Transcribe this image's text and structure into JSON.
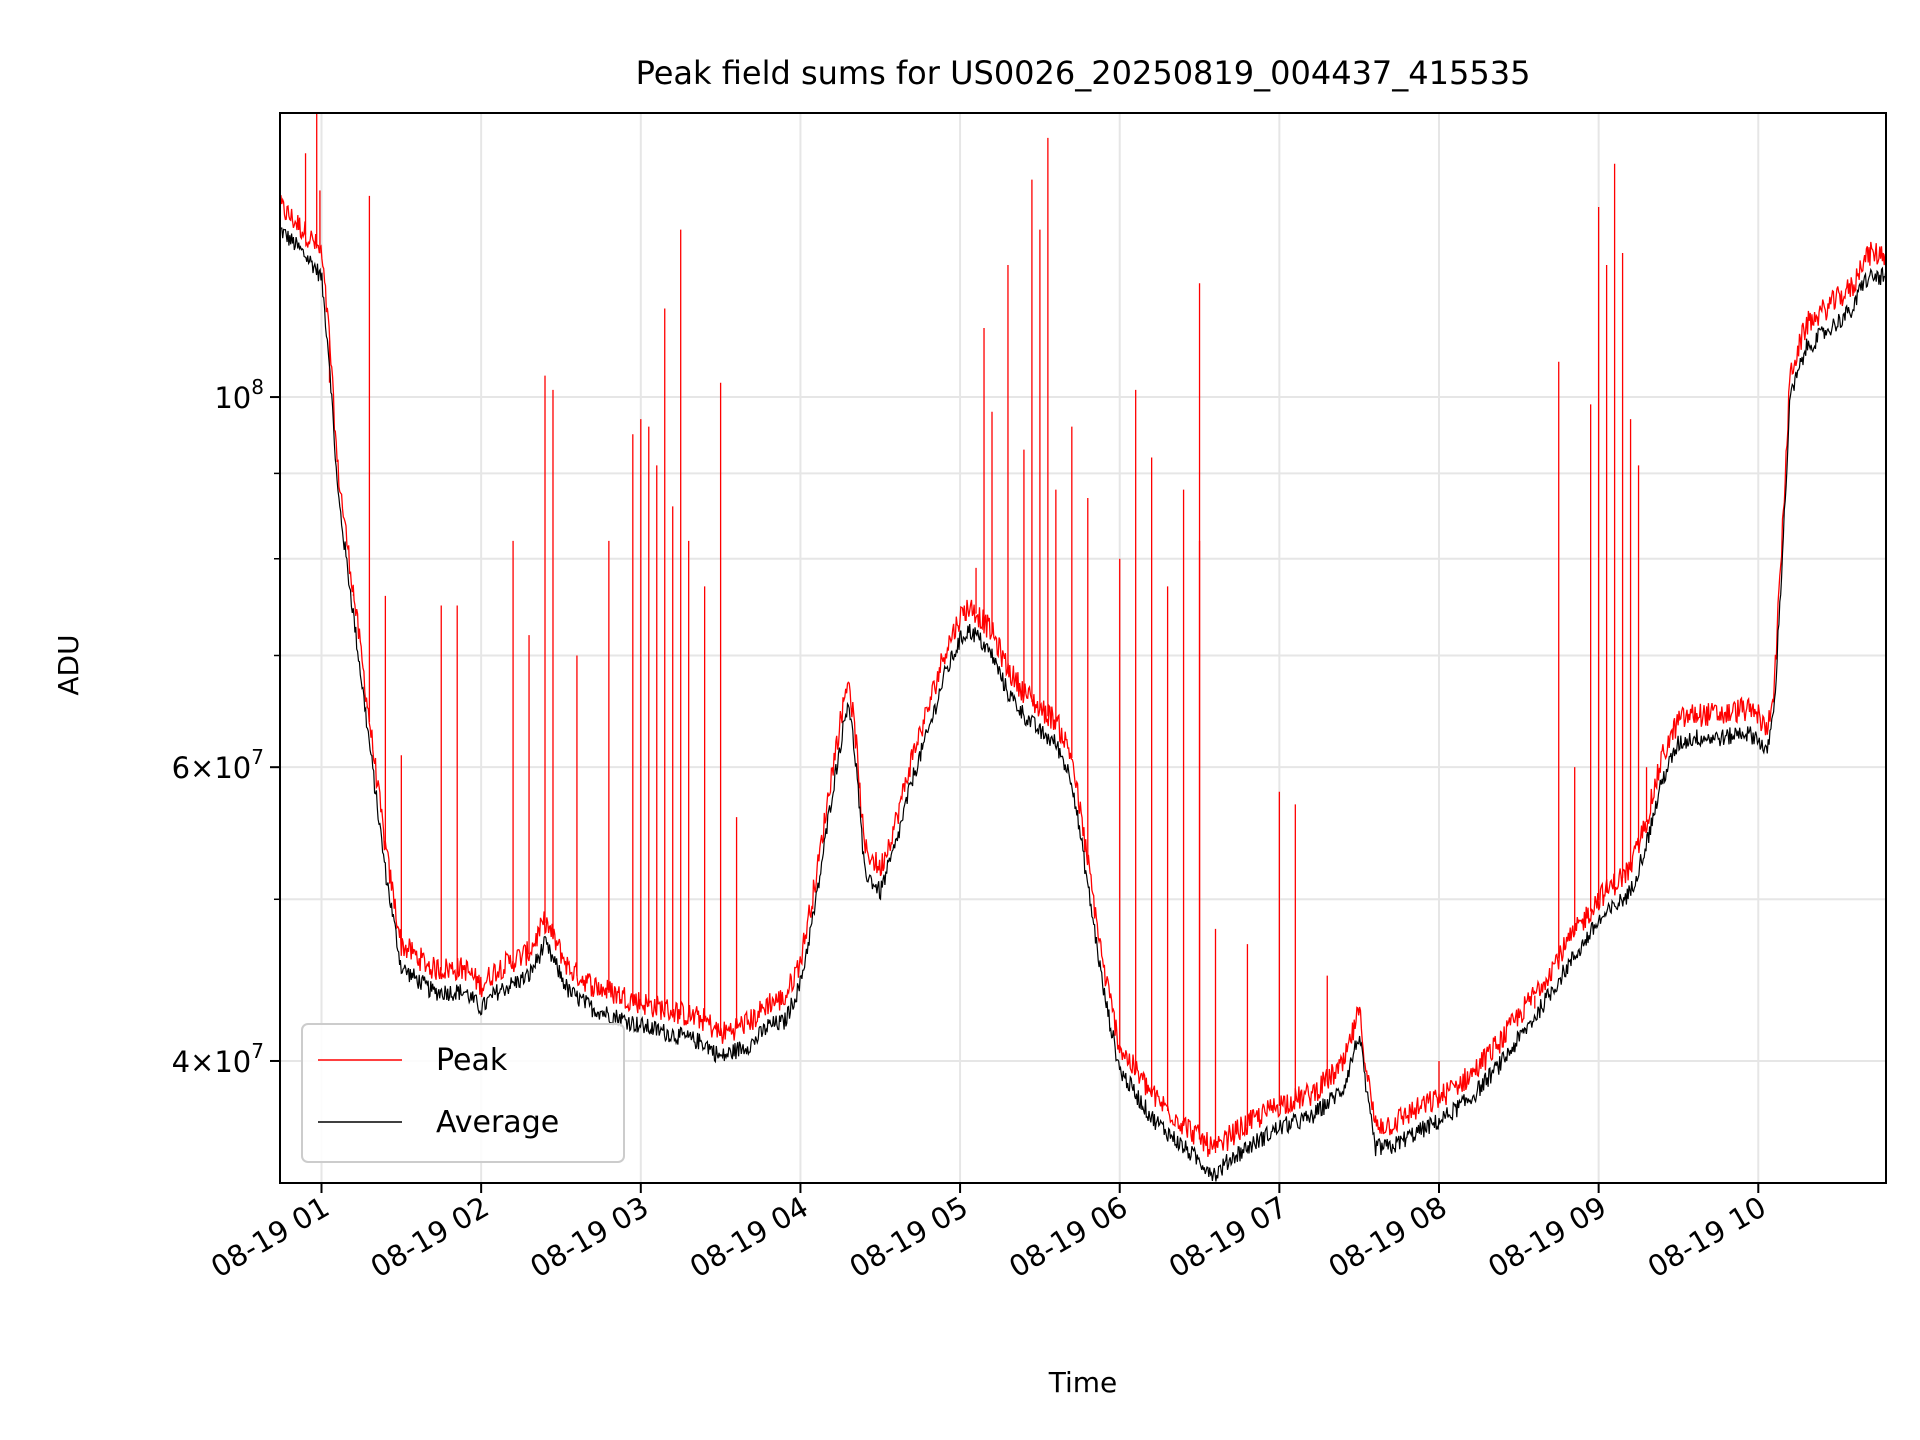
{
  "chart_data": {
    "type": "line",
    "title": "Peak field sums for US0026_20250819_004437_415535",
    "xlabel": "Time",
    "ylabel": "ADU",
    "x_unit": "hours (2025-08-19)",
    "xlim": [
      0.74,
      10.8
    ],
    "ylim": [
      33800000,
      148000000
    ],
    "yscale": "log",
    "grid": true,
    "legend_position": "lower-left",
    "x_ticks": [
      {
        "value": 1,
        "label": "08-19 01"
      },
      {
        "value": 2,
        "label": "08-19 02"
      },
      {
        "value": 3,
        "label": "08-19 03"
      },
      {
        "value": 4,
        "label": "08-19 04"
      },
      {
        "value": 5,
        "label": "08-19 05"
      },
      {
        "value": 6,
        "label": "08-19 06"
      },
      {
        "value": 7,
        "label": "08-19 07"
      },
      {
        "value": 8,
        "label": "08-19 08"
      },
      {
        "value": 9,
        "label": "08-19 09"
      },
      {
        "value": 10,
        "label": "08-19 10"
      }
    ],
    "y_ticks": [
      {
        "value": 40000000,
        "mantissa": "4",
        "exp": "7"
      },
      {
        "value": 60000000,
        "mantissa": "6",
        "exp": "7"
      },
      {
        "value": 100000000,
        "mantissa": "",
        "exp": "8"
      }
    ],
    "y_minor_ticks": [
      50000000,
      70000000,
      80000000,
      90000000
    ],
    "series": [
      {
        "name": "Average",
        "color": "#000000",
        "x": [
          0.74,
          0.85,
          0.95,
          1.0,
          1.05,
          1.1,
          1.2,
          1.3,
          1.4,
          1.5,
          1.7,
          1.9,
          2.0,
          2.1,
          2.3,
          2.4,
          2.45,
          2.55,
          2.7,
          3.0,
          3.2,
          3.4,
          3.5,
          3.7,
          3.8,
          3.9,
          4.0,
          4.1,
          4.2,
          4.3,
          4.35,
          4.4,
          4.5,
          4.6,
          4.7,
          4.8,
          4.9,
          5.0,
          5.05,
          5.1,
          5.2,
          5.3,
          5.4,
          5.5,
          5.6,
          5.7,
          5.8,
          5.9,
          6.0,
          6.2,
          6.4,
          6.6,
          6.7,
          6.8,
          7.0,
          7.2,
          7.4,
          7.5,
          7.55,
          7.6,
          7.7,
          7.8,
          8.0,
          8.2,
          8.4,
          8.6,
          8.8,
          9.0,
          9.2,
          9.3,
          9.4,
          9.5,
          9.6,
          9.8,
          9.9,
          10.0,
          10.05,
          10.1,
          10.15,
          10.2,
          10.3,
          10.4,
          10.5,
          10.6,
          10.65,
          10.7,
          10.8
        ],
        "y": [
          126000000,
          123000000,
          120000000,
          118000000,
          105000000,
          88000000,
          74000000,
          62000000,
          52000000,
          45500000,
          44000000,
          44000000,
          43000000,
          44000000,
          45000000,
          47000000,
          46000000,
          44000000,
          43000000,
          42000000,
          41500000,
          41000000,
          40200000,
          41000000,
          42000000,
          42200000,
          44500000,
          50000000,
          58000000,
          66000000,
          60000000,
          52000000,
          50500000,
          54000000,
          59000000,
          63000000,
          68000000,
          71500000,
          72500000,
          72000000,
          70000000,
          66500000,
          64500000,
          63000000,
          62000000,
          59000000,
          51000000,
          44000000,
          39500000,
          37000000,
          35500000,
          34200000,
          35000000,
          35500000,
          36500000,
          37000000,
          38500000,
          41500000,
          38000000,
          35500000,
          35500000,
          36000000,
          36800000,
          38000000,
          40000000,
          42500000,
          45500000,
          48500000,
          50500000,
          54000000,
          59000000,
          62000000,
          62500000,
          62500000,
          63000000,
          62500000,
          61000000,
          65000000,
          80000000,
          100000000,
          107000000,
          109000000,
          111000000,
          113000000,
          117000000,
          118000000,
          118000000
        ]
      },
      {
        "name": "Peak",
        "color": "#ff0000",
        "spikes": [
          [
            0.9,
            140000000
          ],
          [
            0.97,
            148000000
          ],
          [
            0.99,
            133000000
          ],
          [
            1.3,
            132000000
          ],
          [
            1.05,
            102000000
          ],
          [
            1.2,
            76000000
          ],
          [
            1.4,
            76000000
          ],
          [
            1.5,
            61000000
          ],
          [
            1.75,
            75000000
          ],
          [
            1.85,
            75000000
          ],
          [
            2.2,
            82000000
          ],
          [
            2.3,
            72000000
          ],
          [
            2.4,
            103000000
          ],
          [
            2.45,
            101000000
          ],
          [
            2.6,
            70000000
          ],
          [
            2.8,
            82000000
          ],
          [
            2.95,
            95000000
          ],
          [
            3.0,
            97000000
          ],
          [
            3.05,
            96000000
          ],
          [
            3.1,
            91000000
          ],
          [
            3.15,
            113000000
          ],
          [
            3.2,
            86000000
          ],
          [
            3.25,
            126000000
          ],
          [
            3.3,
            82000000
          ],
          [
            3.4,
            77000000
          ],
          [
            3.5,
            102000000
          ],
          [
            3.6,
            56000000
          ],
          [
            5.1,
            79000000
          ],
          [
            5.15,
            110000000
          ],
          [
            5.2,
            98000000
          ],
          [
            5.3,
            120000000
          ],
          [
            5.4,
            93000000
          ],
          [
            5.45,
            135000000
          ],
          [
            5.5,
            126000000
          ],
          [
            5.55,
            143000000
          ],
          [
            5.6,
            88000000
          ],
          [
            5.7,
            96000000
          ],
          [
            5.8,
            87000000
          ],
          [
            6.0,
            80000000
          ],
          [
            6.1,
            101000000
          ],
          [
            6.2,
            92000000
          ],
          [
            6.3,
            77000000
          ],
          [
            6.4,
            88000000
          ],
          [
            6.5,
            82000000
          ],
          [
            6.5,
            117000000
          ],
          [
            6.6,
            48000000
          ],
          [
            6.8,
            47000000
          ],
          [
            7.0,
            58000000
          ],
          [
            7.1,
            57000000
          ],
          [
            7.3,
            45000000
          ],
          [
            7.5,
            43000000
          ],
          [
            8.0,
            40000000
          ],
          [
            8.6,
            43000000
          ],
          [
            8.75,
            105000000
          ],
          [
            8.85,
            60000000
          ],
          [
            8.95,
            99000000
          ],
          [
            9.0,
            130000000
          ],
          [
            9.05,
            120000000
          ],
          [
            9.1,
            138000000
          ],
          [
            9.15,
            122000000
          ],
          [
            9.2,
            97000000
          ],
          [
            9.25,
            91000000
          ],
          [
            9.3,
            60000000
          ]
        ]
      }
    ]
  }
}
